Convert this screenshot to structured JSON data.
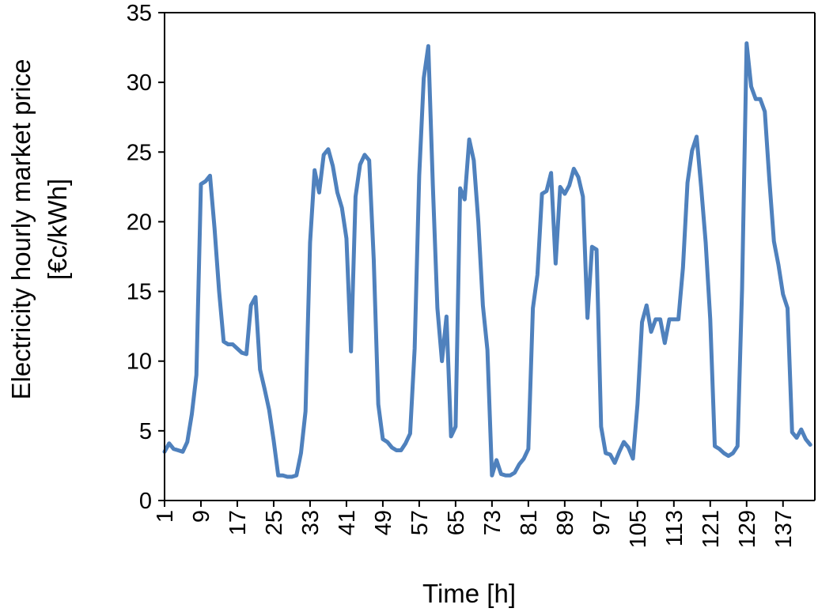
{
  "chart_data": {
    "type": "line",
    "title": "",
    "xlabel": "Time [h]",
    "ylabel_lines": [
      "Electricity hourly market price",
      "[€c/kWh]"
    ],
    "xlim": [
      1,
      144
    ],
    "ylim": [
      0,
      35
    ],
    "y_ticks": [
      0,
      5,
      10,
      15,
      20,
      25,
      30,
      35
    ],
    "x_ticks": [
      1,
      9,
      17,
      25,
      33,
      41,
      49,
      57,
      65,
      73,
      81,
      89,
      97,
      105,
      113,
      121,
      129,
      137
    ],
    "grid": false,
    "legend": "none",
    "series": [
      {
        "color": "#4f81bd",
        "values": [
          3.5,
          4.1,
          3.7,
          3.6,
          3.5,
          4.2,
          6.2,
          9.0,
          22.7,
          22.9,
          23.3,
          19.5,
          15.0,
          11.4,
          11.2,
          11.2,
          10.9,
          10.6,
          10.5,
          14.0,
          14.6,
          9.4,
          8.0,
          6.5,
          4.3,
          1.8,
          1.8,
          1.7,
          1.7,
          1.8,
          3.4,
          6.4,
          18.5,
          23.7,
          22.1,
          24.8,
          25.2,
          24.0,
          22.1,
          21.0,
          18.8,
          10.7,
          21.8,
          24.1,
          24.8,
          24.4,
          17.3,
          6.9,
          4.4,
          4.2,
          3.8,
          3.6,
          3.6,
          4.1,
          4.8,
          10.9,
          23.3,
          30.3,
          32.6,
          22.6,
          13.8,
          10.0,
          13.2,
          4.6,
          5.3,
          22.4,
          21.6,
          25.9,
          24.4,
          20.0,
          14.0,
          10.8,
          1.8,
          2.9,
          1.9,
          1.8,
          1.8,
          2.0,
          2.6,
          3.0,
          3.7,
          13.8,
          16.2,
          22.0,
          22.2,
          23.5,
          17.0,
          22.5,
          22.0,
          22.6,
          23.8,
          23.2,
          21.8,
          13.1,
          18.2,
          18.0,
          5.3,
          3.4,
          3.3,
          2.7,
          3.5,
          4.2,
          3.8,
          3.0,
          6.9,
          12.8,
          14.0,
          12.1,
          13.0,
          13.0,
          11.3,
          13.0,
          13.0,
          13.0,
          16.7,
          22.8,
          25.1,
          26.1,
          22.5,
          18.5,
          13.0,
          3.9,
          3.7,
          3.4,
          3.2,
          3.4,
          3.9,
          15.2,
          32.8,
          29.7,
          28.8,
          28.8,
          27.9,
          23.0,
          18.6,
          16.9,
          14.8,
          13.8,
          4.9,
          4.5,
          5.1,
          4.4,
          4.0
        ]
      }
    ]
  }
}
